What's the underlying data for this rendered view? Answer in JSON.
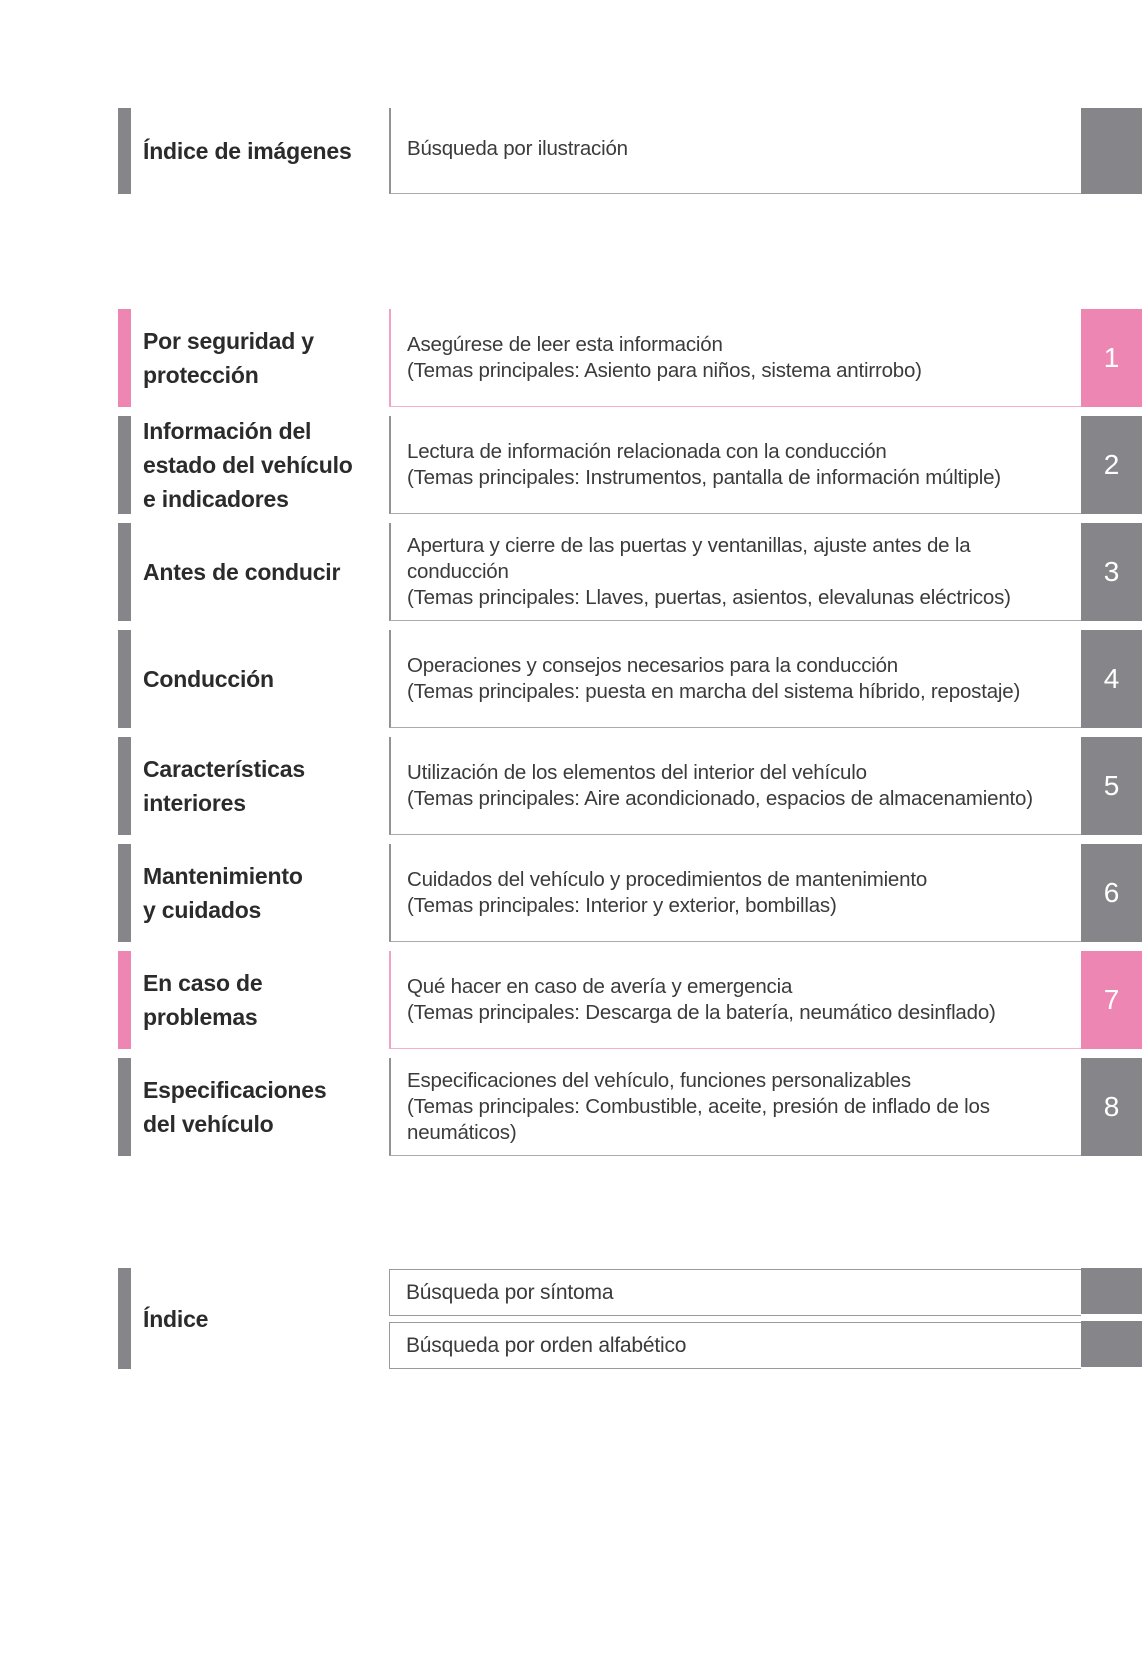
{
  "page": {
    "accent_pink": "#ee86b4",
    "accent_gray": "#86868a",
    "tab_text_color": "#ffffff"
  },
  "top_row": {
    "title": "Índice de imágenes",
    "description": "Búsqueda por ilustración"
  },
  "sections": [
    {
      "number": "1",
      "color": "pink",
      "title": "Por seguridad y\nprotección",
      "description": "Asegúrese de leer esta información",
      "topics": "(Temas principales: Asiento para niños, sistema antirrobo)"
    },
    {
      "number": "2",
      "color": "gray",
      "title": "Información del\nestado del vehículo\ne indicadores",
      "description": "Lectura de información relacionada con la conducción",
      "topics": "(Temas principales: Instrumentos, pantalla de información múltiple)"
    },
    {
      "number": "3",
      "color": "gray",
      "title": "Antes de conducir",
      "description": "Apertura y cierre de las puertas y ventanillas, ajuste antes de la conducción",
      "topics": "(Temas principales: Llaves, puertas, asientos, elevalunas eléctricos)"
    },
    {
      "number": "4",
      "color": "gray",
      "title": "Conducción",
      "description": "Operaciones y consejos necesarios para la conducción",
      "topics": "(Temas principales: puesta en marcha del sistema híbrido, repostaje)"
    },
    {
      "number": "5",
      "color": "gray",
      "title": "Características\ninteriores",
      "description": "Utilización de los elementos del interior del vehículo",
      "topics": "(Temas principales: Aire acondicionado, espacios de almacenamiento)"
    },
    {
      "number": "6",
      "color": "gray",
      "title": "Mantenimiento\ny cuidados",
      "description": "Cuidados del vehículo y procedimientos de mantenimiento",
      "topics": "(Temas principales: Interior y exterior, bombillas)"
    },
    {
      "number": "7",
      "color": "pink",
      "title": "En caso de\nproblemas",
      "description": "Qué hacer en caso de avería y emergencia",
      "topics": "(Temas principales: Descarga de la batería, neumático desinflado)"
    },
    {
      "number": "8",
      "color": "gray",
      "title": "Especificaciones\ndel vehículo",
      "description": "Especificaciones del vehículo, funciones personalizables",
      "topics": "(Temas principales: Combustible, aceite, presión de inflado de los neumáticos)"
    }
  ],
  "index_row": {
    "title": "Índice",
    "items": [
      "Búsqueda por síntoma",
      "Búsqueda por orden alfabético"
    ]
  }
}
